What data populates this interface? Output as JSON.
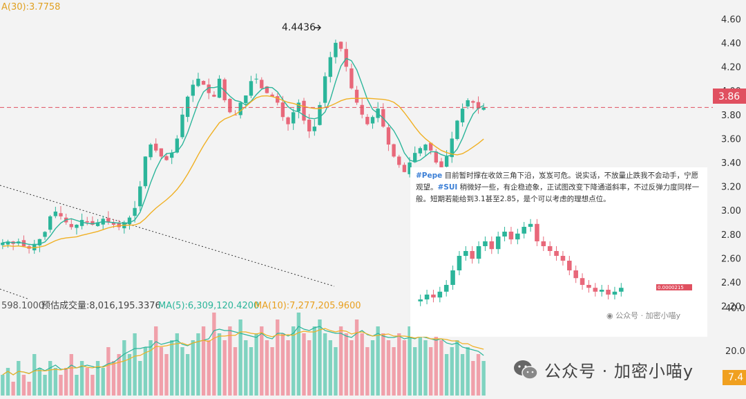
{
  "chart_data": [
    {
      "type": "candlestick",
      "symbol_context": "SUI",
      "y_axis_ticks": [
        "4.60",
        "4.40",
        "4.20",
        "4.00",
        "3.80",
        "3.60",
        "3.40",
        "3.20",
        "3.00",
        "2.80",
        "2.60",
        "2.40",
        "2.20"
      ],
      "ylim": [
        2.1,
        4.7
      ],
      "current_price_label": "3.86",
      "current_price": 3.86,
      "peak_label": "4.4436",
      "peak_value": 4.4436,
      "ma30_label": "A(30):3.7758",
      "header_partial": "",
      "close_series": [
        2.73,
        2.74,
        2.72,
        2.74,
        2.7,
        2.68,
        2.72,
        2.76,
        2.82,
        2.95,
        2.99,
        2.95,
        2.9,
        2.86,
        2.88,
        2.92,
        2.9,
        2.88,
        2.9,
        2.93,
        2.9,
        2.88,
        2.86,
        2.9,
        2.94,
        3.02,
        3.2,
        3.45,
        3.55,
        3.5,
        3.45,
        3.42,
        3.48,
        3.6,
        3.8,
        3.95,
        4.05,
        4.1,
        4.05,
        3.98,
        3.95,
        4.1,
        3.92,
        3.82,
        3.8,
        3.9,
        3.96,
        4.08,
        4.1,
        4.02,
        3.98,
        3.95,
        3.9,
        3.78,
        3.72,
        3.82,
        3.9,
        3.75,
        3.66,
        3.7,
        3.88,
        4.12,
        4.28,
        4.4,
        4.35,
        4.2,
        4.02,
        3.9,
        3.8,
        3.72,
        3.78,
        3.85,
        3.7,
        3.55,
        3.45,
        3.38,
        3.32,
        3.4,
        3.48,
        3.52,
        3.55,
        3.5,
        3.4,
        3.36,
        3.45,
        3.6,
        3.75,
        3.85,
        3.92,
        3.9,
        3.85,
        3.86
      ],
      "ma_fast_line_color": "#2bb59a",
      "ma_slow_line_color": "#f0b023",
      "up_color": "#2bb59a",
      "down_color": "#e8687a",
      "price_line_color": "#e05060"
    },
    {
      "type": "bar",
      "panel": "volume",
      "legend_left": "598.1000",
      "legend_forecast": "预估成交量:8,016,195.3376",
      "legend_ma5": "MA(5):6,309,120.4200",
      "legend_ma10": "MA(10):7,277,205.9600",
      "y_axis_ticks": [
        "40.00",
        "20.00"
      ],
      "current_volume_tag": "7.4",
      "volume_series": [
        3,
        4,
        2,
        5,
        3,
        2,
        6,
        4,
        3,
        5,
        4,
        3,
        4,
        6,
        3,
        5,
        4,
        3,
        5,
        4,
        7,
        5,
        6,
        8,
        6,
        9,
        5,
        7,
        8,
        10,
        7,
        6,
        8,
        9,
        7,
        6,
        8,
        9,
        10,
        8,
        12,
        9,
        8,
        10,
        7,
        11,
        8,
        7,
        9,
        10,
        8,
        7,
        11,
        9,
        8,
        10,
        12,
        9,
        8,
        10,
        11,
        9,
        8,
        7,
        10,
        9,
        8,
        11,
        9,
        7,
        8,
        10,
        9,
        8,
        7,
        9,
        8,
        10,
        7,
        9,
        8,
        7,
        9,
        8,
        6,
        7,
        8,
        6,
        7,
        5,
        6,
        5
      ]
    }
  ],
  "inset": {
    "text_tag1": "#Pepe",
    "text_part1": " 目前暂时撑在收敛三角下沿，岌岌可危。说实话，不放量止跌我不会动手，宁愿观望。",
    "text_tag2": "#SUI",
    "text_part2": " 稍微好一些，有企稳迹象，正试图改变下降通道斜率，不过反弹力度同样一般。短期若能给到3.1甚至2.85，是个可以考虑的理想点位。",
    "watermark_small": "公众号 · 加密小喵y",
    "mini_close_series": [
      2.0,
      2.05,
      2.02,
      2.08,
      2.15,
      2.3,
      2.45,
      2.5,
      2.42,
      2.55,
      2.6,
      2.52,
      2.65,
      2.7,
      2.62,
      2.68,
      2.75,
      2.78,
      2.6,
      2.55,
      2.5,
      2.45,
      2.4,
      2.3,
      2.22,
      2.15,
      2.12,
      2.08,
      2.1,
      2.05,
      2.08,
      2.12
    ],
    "mini_tag_value": "0.0000215"
  },
  "watermark_main": "公众号 · 加密小喵y"
}
